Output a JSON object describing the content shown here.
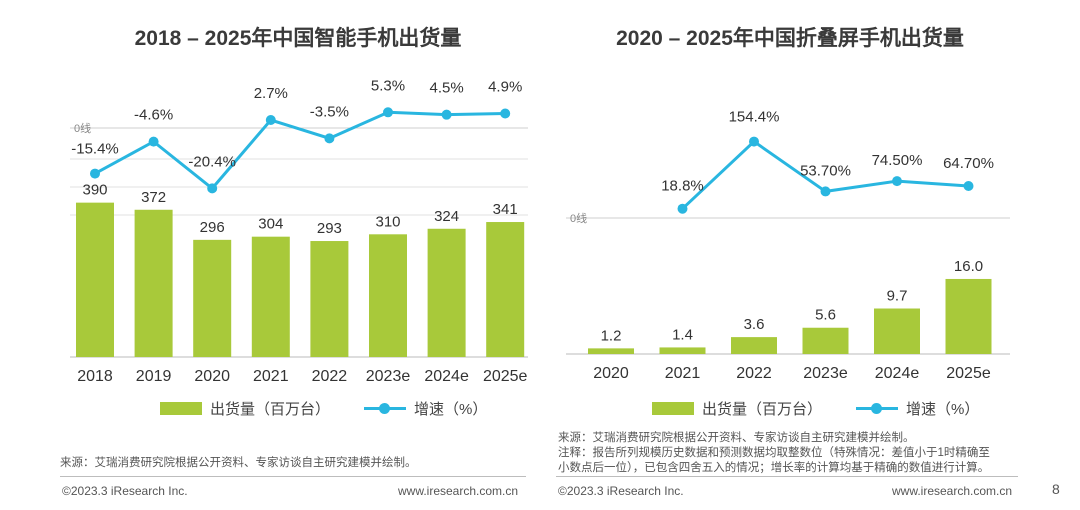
{
  "page_number": "8",
  "chart_data": [
    {
      "type": "bar+line",
      "title": "2018 – 2025年中国智能手机出货量",
      "categories": [
        "2018",
        "2019",
        "2020",
        "2021",
        "2022",
        "2023e",
        "2024e",
        "2025e"
      ],
      "series": [
        {
          "name": "出货量（百万台）",
          "type": "bar",
          "values": [
            390,
            372,
            296,
            304,
            293,
            310,
            324,
            341
          ],
          "labels": [
            "390",
            "372",
            "296",
            "304",
            "293",
            "310",
            "324",
            "341"
          ],
          "color": "#a8c93a"
        },
        {
          "name": "增速（%）",
          "type": "line",
          "values": [
            -15.4,
            -4.6,
            -20.4,
            2.7,
            -3.5,
            5.3,
            4.5,
            4.9
          ],
          "labels": [
            "-15.4%",
            "-4.6%",
            "-20.4%",
            "2.7%",
            "-3.5%",
            "5.3%",
            "4.5%",
            "4.9%"
          ],
          "color": "#29b6e0"
        }
      ],
      "zero_line_label": "0线",
      "legend": [
        "出货量（百万台）",
        "增速（%）"
      ]
    },
    {
      "type": "bar+line",
      "title": "2020 – 2025年中国折叠屏手机出货量",
      "categories": [
        "2020",
        "2021",
        "2022",
        "2023e",
        "2024e",
        "2025e"
      ],
      "series": [
        {
          "name": "出货量（百万台）",
          "type": "bar",
          "values": [
            1.2,
            1.4,
            3.6,
            5.6,
            9.7,
            16.0
          ],
          "labels": [
            "1.2",
            "1.4",
            "3.6",
            "5.6",
            "9.7",
            "16.0"
          ],
          "color": "#a8c93a"
        },
        {
          "name": "增速（%）",
          "type": "line",
          "values": [
            null,
            18.8,
            154.4,
            53.7,
            74.5,
            64.7
          ],
          "labels": [
            "",
            "18.8%",
            "154.4%",
            "53.70%",
            "74.50%",
            "64.70%"
          ],
          "color": "#29b6e0"
        }
      ],
      "zero_line_label": "0线",
      "legend": [
        "出货量（百万台）",
        "增速（%）"
      ]
    }
  ],
  "left_notes": {
    "source": "来源：艾瑞消费研究院根据公开资料、专家访谈自主研究建模并绘制。"
  },
  "right_notes": {
    "source": "来源：艾瑞消费研究院根据公开资料、专家访谈自主研究建模并绘制。",
    "remark_1": "注释：报告所列规模历史数据和预测数据均取整数位（特殊情况：差值小于1时精确至",
    "remark_2": "小数点后一位），已包含四舍五入的情况；增长率的计算均基于精确的数值进行计算。"
  },
  "footer": {
    "copyright": "©2023.3 iResearch Inc.",
    "website": "www.iresearch.com.cn"
  }
}
